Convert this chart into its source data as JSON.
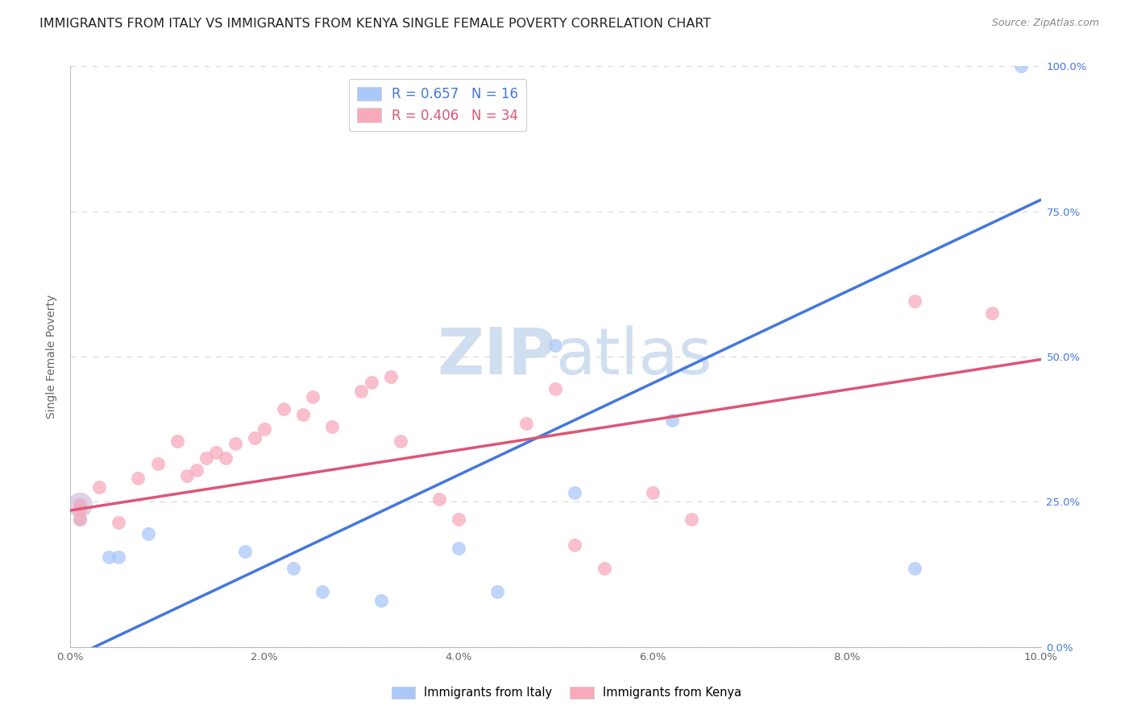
{
  "title": "IMMIGRANTS FROM ITALY VS IMMIGRANTS FROM KENYA SINGLE FEMALE POVERTY CORRELATION CHART",
  "source": "Source: ZipAtlas.com",
  "ylabel": "Single Female Poverty",
  "legend_label1": "Immigrants from Italy",
  "legend_label2": "Immigrants from Kenya",
  "R1": 0.657,
  "N1": 16,
  "R2": 0.406,
  "N2": 34,
  "color1": "#aac8f8",
  "color2": "#f8aabb",
  "line_color1": "#4477dd",
  "line_color2": "#dd5577",
  "watermark_color": "#d0dff0",
  "xlim": [
    0.0,
    0.1
  ],
  "ylim": [
    0.0,
    1.0
  ],
  "xticks": [
    0.0,
    0.02,
    0.04,
    0.06,
    0.08,
    0.1
  ],
  "yticks": [
    0.0,
    0.25,
    0.5,
    0.75,
    1.0
  ],
  "italy_x": [
    0.001,
    0.001,
    0.004,
    0.005,
    0.008,
    0.018,
    0.023,
    0.026,
    0.032,
    0.04,
    0.044,
    0.05,
    0.052,
    0.062,
    0.087,
    0.098
  ],
  "italy_y": [
    0.245,
    0.22,
    0.155,
    0.155,
    0.195,
    0.165,
    0.135,
    0.095,
    0.08,
    0.17,
    0.095,
    0.52,
    0.265,
    0.39,
    0.135,
    1.0
  ],
  "kenya_x": [
    0.001,
    0.001,
    0.001,
    0.003,
    0.005,
    0.007,
    0.009,
    0.011,
    0.012,
    0.013,
    0.014,
    0.015,
    0.016,
    0.017,
    0.019,
    0.02,
    0.022,
    0.024,
    0.025,
    0.027,
    0.03,
    0.031,
    0.033,
    0.034,
    0.038,
    0.04,
    0.047,
    0.05,
    0.052,
    0.055,
    0.06,
    0.064,
    0.087,
    0.095
  ],
  "kenya_y": [
    0.245,
    0.235,
    0.22,
    0.275,
    0.215,
    0.29,
    0.315,
    0.355,
    0.295,
    0.305,
    0.325,
    0.335,
    0.325,
    0.35,
    0.36,
    0.375,
    0.41,
    0.4,
    0.43,
    0.38,
    0.44,
    0.455,
    0.465,
    0.355,
    0.255,
    0.22,
    0.385,
    0.445,
    0.175,
    0.135,
    0.265,
    0.22,
    0.595,
    0.575
  ],
  "background_color": "#ffffff",
  "title_color": "#222222",
  "axis_color": "#bbbbbb",
  "grid_color": "#dddddd",
  "title_fontsize": 11.5,
  "label_fontsize": 10,
  "tick_fontsize": 9.5,
  "source_fontsize": 9,
  "right_tick_color": "#4477dd"
}
